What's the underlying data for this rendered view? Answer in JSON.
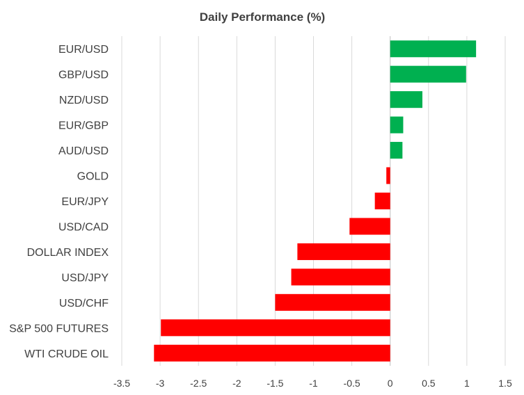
{
  "chart_data": {
    "type": "bar",
    "orientation": "horizontal",
    "title": "Daily Performance (%)",
    "xlabel": "",
    "ylabel": "",
    "categories": [
      "EUR/USD",
      "GBP/USD",
      "NZD/USD",
      "EUR/GBP",
      "AUD/USD",
      "GOLD",
      "EUR/JPY",
      "USD/CAD",
      "DOLLAR INDEX",
      "USD/JPY",
      "USD/CHF",
      "S&P 500 FUTURES",
      "WTI CRUDE OIL"
    ],
    "values": [
      1.12,
      0.99,
      0.42,
      0.17,
      0.16,
      -0.05,
      -0.2,
      -0.53,
      -1.21,
      -1.29,
      -1.5,
      -2.99,
      -3.08
    ],
    "xlim": [
      -3.5,
      1.5
    ],
    "xticks": [
      -3.5,
      -3,
      -2.5,
      -2,
      -1.5,
      -1,
      -0.5,
      0,
      0.5,
      1,
      1.5
    ],
    "xtick_labels": [
      "-3.5",
      "-3",
      "-2.5",
      "-2",
      "-1.5",
      "-1",
      "-0.5",
      "0",
      "0.5",
      "1",
      "1.5"
    ],
    "grid": "vertical",
    "legend": "none",
    "colors": {
      "positive": "#00b050",
      "negative": "#ff0000"
    }
  }
}
